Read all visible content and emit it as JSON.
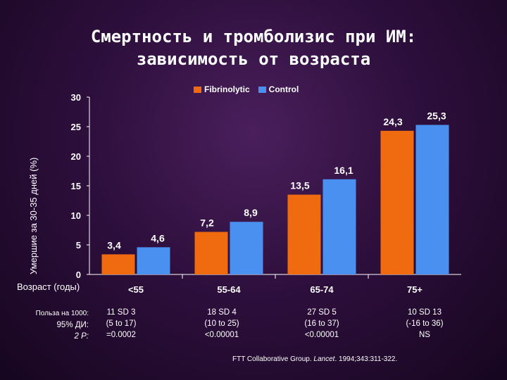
{
  "slide": {
    "title_line1": "Смертность и тромболизис при ИМ:",
    "title_line2": "зависимость от возраста",
    "benefit_labels": [
      "Польза на 1000:",
      "95% ДИ:",
      "2 P:"
    ],
    "stats": [
      [
        "11 SD 3",
        "(5 to 17)",
        "=0.0002"
      ],
      [
        "18 SD 4",
        "(10 to 25)",
        "<0.00001"
      ],
      [
        "27 SD 5",
        "(16 to 37)",
        "<0.00001"
      ],
      [
        "10 SD 13",
        "(-16 to 36)",
        "NS"
      ]
    ],
    "footnote_pre": "FTT Collaborative Group. ",
    "footnote_journal": "Lancet",
    "footnote_post": ". 1994;343:311-322."
  },
  "chart_data": {
    "type": "bar",
    "categories": [
      "<55",
      "55-64",
      "65-74",
      "75+"
    ],
    "series": [
      {
        "name": "Fibrinolytic",
        "color": "#f06a10",
        "values": [
          3.4,
          7.2,
          13.5,
          24.3
        ],
        "labels": [
          "3,4",
          "7,2",
          "13,5",
          "24,3"
        ]
      },
      {
        "name": "Control",
        "color": "#4a90f0",
        "values": [
          4.6,
          8.9,
          16.1,
          25.3
        ],
        "labels": [
          "4,6",
          "8,9",
          "16,1",
          "25,3"
        ]
      }
    ],
    "ylabel": "Умершие за 30-35 дней (%)",
    "xlabel": "Возраст (годы)",
    "ylim": [
      0,
      30
    ],
    "yticks": [
      0,
      5,
      10,
      15,
      20,
      25,
      30
    ],
    "legend_position": "top"
  }
}
